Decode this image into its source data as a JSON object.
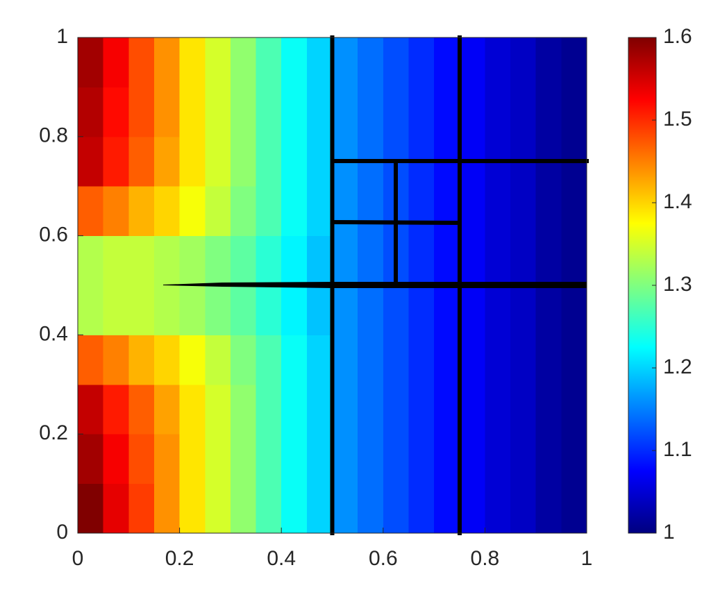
{
  "chart_data": {
    "type": "heatmap",
    "colormap": "jet",
    "x": [
      0.025,
      0.075,
      0.125,
      0.175,
      0.225,
      0.275,
      0.325,
      0.375,
      0.425,
      0.475,
      0.525,
      0.575,
      0.625,
      0.675,
      0.725,
      0.775,
      0.825,
      0.875,
      0.925,
      0.975
    ],
    "y": [
      0.05,
      0.15,
      0.25,
      0.35,
      0.45,
      0.55,
      0.65,
      0.75,
      0.85,
      0.95
    ],
    "z": [
      [
        1.6,
        1.54,
        1.49,
        1.44,
        1.39,
        1.35,
        1.31,
        1.27,
        1.23,
        1.2,
        1.16,
        1.14,
        1.12,
        1.1,
        1.08,
        1.07,
        1.05,
        1.04,
        1.02,
        1.01
      ],
      [
        1.58,
        1.53,
        1.48,
        1.44,
        1.39,
        1.35,
        1.31,
        1.27,
        1.23,
        1.2,
        1.16,
        1.14,
        1.12,
        1.1,
        1.08,
        1.07,
        1.05,
        1.04,
        1.02,
        1.01
      ],
      [
        1.56,
        1.51,
        1.47,
        1.43,
        1.39,
        1.35,
        1.31,
        1.27,
        1.23,
        1.2,
        1.16,
        1.14,
        1.12,
        1.1,
        1.08,
        1.07,
        1.05,
        1.04,
        1.02,
        1.01
      ],
      [
        1.47,
        1.45,
        1.42,
        1.4,
        1.37,
        1.34,
        1.3,
        1.27,
        1.23,
        1.2,
        1.16,
        1.14,
        1.12,
        1.1,
        1.08,
        1.07,
        1.05,
        1.04,
        1.02,
        1.01
      ],
      [
        1.33,
        1.34,
        1.34,
        1.33,
        1.32,
        1.3,
        1.28,
        1.25,
        1.22,
        1.19,
        1.16,
        1.14,
        1.12,
        1.1,
        1.08,
        1.07,
        1.05,
        1.04,
        1.02,
        1.01
      ],
      [
        1.33,
        1.34,
        1.34,
        1.33,
        1.32,
        1.3,
        1.28,
        1.25,
        1.22,
        1.19,
        1.16,
        1.14,
        1.12,
        1.1,
        1.08,
        1.07,
        1.05,
        1.04,
        1.02,
        1.01
      ],
      [
        1.47,
        1.45,
        1.42,
        1.4,
        1.37,
        1.34,
        1.3,
        1.27,
        1.23,
        1.2,
        1.16,
        1.14,
        1.12,
        1.1,
        1.08,
        1.07,
        1.05,
        1.04,
        1.02,
        1.01
      ],
      [
        1.56,
        1.51,
        1.47,
        1.43,
        1.39,
        1.35,
        1.31,
        1.27,
        1.23,
        1.2,
        1.16,
        1.14,
        1.12,
        1.1,
        1.08,
        1.07,
        1.05,
        1.04,
        1.02,
        1.01
      ],
      [
        1.57,
        1.52,
        1.48,
        1.44,
        1.39,
        1.35,
        1.31,
        1.27,
        1.23,
        1.2,
        1.16,
        1.14,
        1.12,
        1.1,
        1.08,
        1.07,
        1.05,
        1.04,
        1.02,
        1.01
      ],
      [
        1.58,
        1.53,
        1.48,
        1.44,
        1.39,
        1.35,
        1.31,
        1.27,
        1.23,
        1.2,
        1.16,
        1.14,
        1.12,
        1.1,
        1.08,
        1.07,
        1.05,
        1.04,
        1.02,
        1.01
      ]
    ],
    "xlim": [
      0,
      1
    ],
    "ylim": [
      0,
      1
    ],
    "xticks": [
      0,
      0.2,
      0.4,
      0.6,
      0.8,
      1
    ],
    "yticks": [
      0,
      0.2,
      0.4,
      0.6,
      0.8,
      1
    ],
    "clim": [
      1,
      1.6
    ],
    "cticks": [
      1,
      1.1,
      1.2,
      1.3,
      1.4,
      1.5,
      1.6
    ]
  }
}
